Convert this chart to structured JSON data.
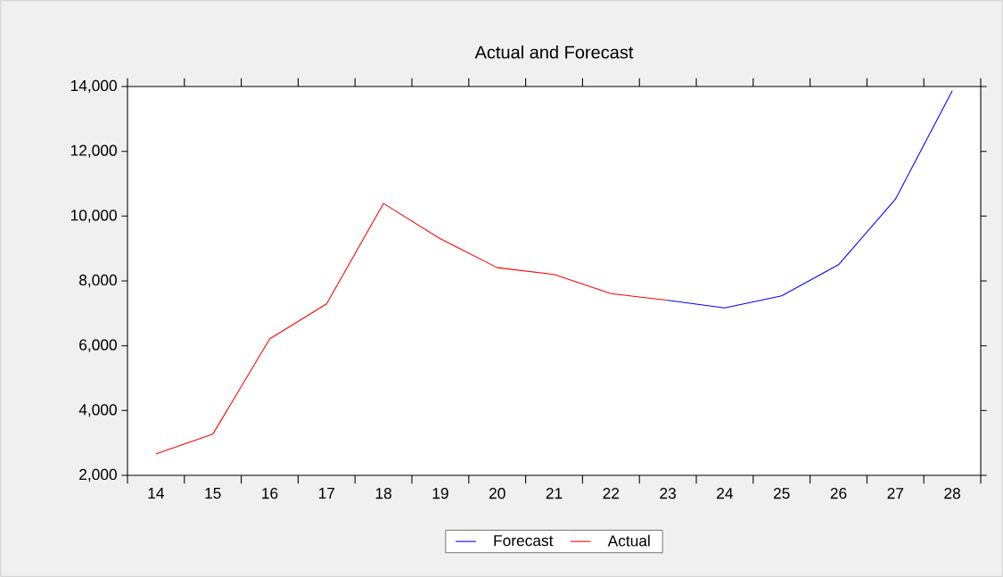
{
  "chart_data": {
    "type": "line",
    "title": "Actual and Forecast",
    "categories": [
      "14",
      "15",
      "16",
      "17",
      "18",
      "19",
      "20",
      "21",
      "22",
      "23",
      "24",
      "25",
      "26",
      "27",
      "28"
    ],
    "series": [
      {
        "name": "Forecast",
        "color": "#0000ff",
        "values": [
          null,
          null,
          null,
          null,
          null,
          null,
          null,
          null,
          null,
          7400,
          7170,
          7540,
          8500,
          10520,
          13870
        ]
      },
      {
        "name": "Actual",
        "color": "#ff0000",
        "values": [
          2660,
          3270,
          6210,
          7290,
          10390,
          9300,
          8410,
          8200,
          7610,
          7400,
          null,
          null,
          null,
          null,
          null
        ]
      }
    ],
    "ylim": [
      2000,
      14000
    ],
    "yticks": [
      {
        "value": 2000,
        "label": "2,000"
      },
      {
        "value": 4000,
        "label": "4,000"
      },
      {
        "value": 6000,
        "label": "6,000"
      },
      {
        "value": 8000,
        "label": "8,000"
      },
      {
        "value": 10000,
        "label": "10,000"
      },
      {
        "value": 12000,
        "label": "12,000"
      },
      {
        "value": 14000,
        "label": "14,000"
      }
    ],
    "legend": "bottom",
    "marker": "none",
    "line_style": "solid"
  }
}
